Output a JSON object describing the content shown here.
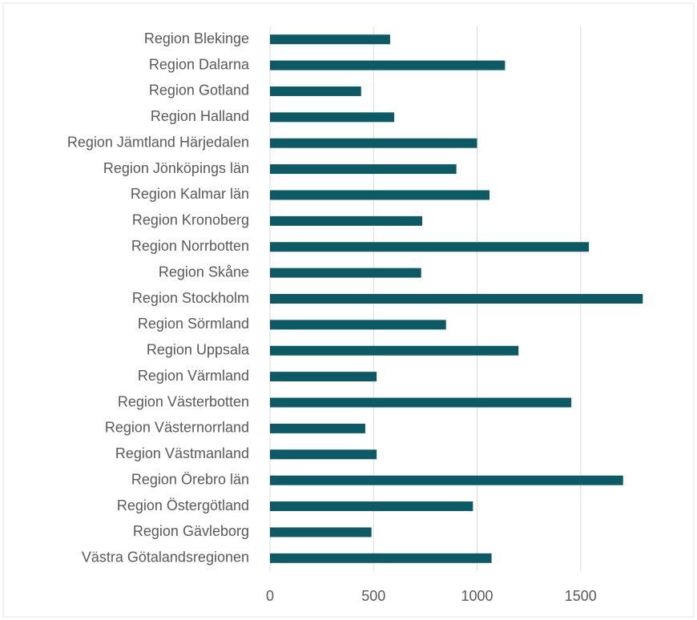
{
  "chart_data": {
    "type": "bar",
    "orientation": "horizontal",
    "categories": [
      "Region Blekinge",
      "Region Dalarna",
      "Region Gotland",
      "Region Halland",
      "Region Jämtland Härjedalen",
      "Region Jönköpings län",
      "Region Kalmar län",
      "Region Kronoberg",
      "Region Norrbotten",
      "Region Skåne",
      "Region Stockholm",
      "Region Sörmland",
      "Region Uppsala",
      "Region Värmland",
      "Region Västerbotten",
      "Region Västernorrland",
      "Region Västmanland",
      "Region Örebro län",
      "Region Östergötland",
      "Region Gävleborg",
      "Västra Götalandsregionen"
    ],
    "values": [
      580,
      1135,
      440,
      600,
      1000,
      900,
      1060,
      735,
      1540,
      730,
      1800,
      850,
      1200,
      515,
      1455,
      460,
      515,
      1705,
      980,
      490,
      1070
    ],
    "color": "#0b5a66",
    "xlim": [
      0,
      2000
    ],
    "xticks": [
      0,
      500,
      1000,
      1500
    ],
    "grid": true
  }
}
